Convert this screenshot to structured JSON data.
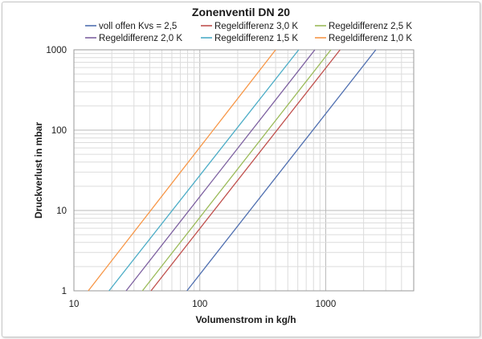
{
  "chart_data": {
    "type": "line",
    "title": "Zonenventil DN 20",
    "xlabel": "Volumenstrom in kg/h",
    "ylabel": "Druckverlust in mbar",
    "xscale": "log",
    "yscale": "log",
    "xlim": [
      10,
      5000
    ],
    "ylim": [
      1,
      1000
    ],
    "x_ticks": [
      "10",
      "100",
      "1000"
    ],
    "y_ticks": [
      "1",
      "10",
      "100",
      "1000"
    ],
    "grid": true,
    "legend_position": "top",
    "series": [
      {
        "name": "voll offen Kvs = 2,5",
        "color": "#4f6fb0",
        "x": [
          79,
          2500
        ],
        "y": [
          1,
          1000
        ]
      },
      {
        "name": "Regeldifferenz 3,0 K",
        "color": "#c0504d",
        "x": [
          41,
          1300
        ],
        "y": [
          1,
          1000
        ]
      },
      {
        "name": "Regeldifferenz 2,5 K",
        "color": "#9bbb59",
        "x": [
          35,
          1100
        ],
        "y": [
          1,
          1000
        ]
      },
      {
        "name": "Regeldifferenz 2,0 K",
        "color": "#7d60a0",
        "x": [
          26,
          820
        ],
        "y": [
          1,
          1000
        ]
      },
      {
        "name": "Regeldifferenz 1,5 K",
        "color": "#4bacc6",
        "x": [
          19,
          610
        ],
        "y": [
          1,
          1000
        ]
      },
      {
        "name": "Regeldifferenz 1,0 K",
        "color": "#f79646",
        "x": [
          13,
          400
        ],
        "y": [
          1,
          1000
        ]
      }
    ]
  }
}
